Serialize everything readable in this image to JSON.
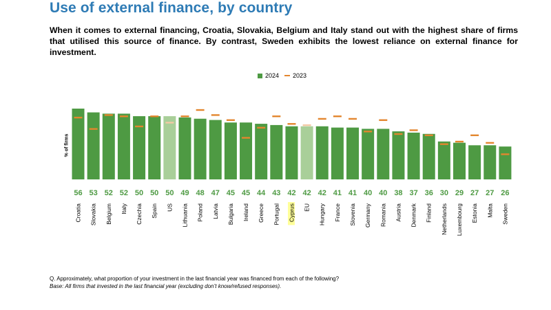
{
  "title": "Use of external finance, by country",
  "subtitle": "When it comes to external financing, Croatia, Slovakia, Belgium and Italy stand out with the highest share of firms that utilised this source of finance. By contrast, Sweden exhibits the lowest reliance on external finance for investment.",
  "footnote": {
    "question": "Q. Approximately, what proportion of your investment in the last financial year was financed from each of the following?",
    "base": "Base: All firms that invested in the last financial year (excluding don’t know/refused responses)."
  },
  "colors": {
    "bar": "#4e9a43",
    "bar_highlight": "#a9cf99",
    "marker": "#e3862e",
    "marker_highlight": "#f3c9a4",
    "value_label": "#4e9a43",
    "cyprus_highlight": "#ffff99"
  },
  "chart_data": {
    "type": "bar",
    "ylabel": "% of firms",
    "ylim": [
      0,
      56
    ],
    "legend": [
      "2024",
      "2023"
    ],
    "categories": [
      "Croatia",
      "Slovakia",
      "Belgium",
      "Italy",
      "Czechia",
      "Spain",
      "US",
      "Lithuania",
      "Poland",
      "Latvia",
      "Bulgaria",
      "Ireland",
      "Greece",
      "Portugal",
      "Cyprus",
      "EU",
      "Hungary",
      "France",
      "Slovenia",
      "Germany",
      "Romania",
      "Austria",
      "Denmark",
      "Finland",
      "Netherlands",
      "Luxembourg",
      "Estonia",
      "Malta",
      "Sweden"
    ],
    "series": [
      {
        "name": "2024",
        "values": [
          56,
          53,
          52,
          52,
          50,
          50,
          50,
          49,
          48,
          47,
          45,
          45,
          44,
          43,
          42,
          42,
          42,
          41,
          41,
          40,
          40,
          38,
          37,
          36,
          30,
          29,
          27,
          27,
          26
        ]
      },
      {
        "name": "2023",
        "values": [
          49,
          40,
          51,
          50,
          42,
          50,
          45,
          50,
          55,
          51,
          47,
          33,
          41,
          50,
          44,
          43,
          48,
          50,
          48,
          38,
          47,
          36,
          39,
          35,
          28,
          30,
          35,
          29,
          20
        ]
      }
    ],
    "highlighted": [
      "US",
      "EU"
    ],
    "label_highlighted": [
      "Cyprus"
    ]
  }
}
